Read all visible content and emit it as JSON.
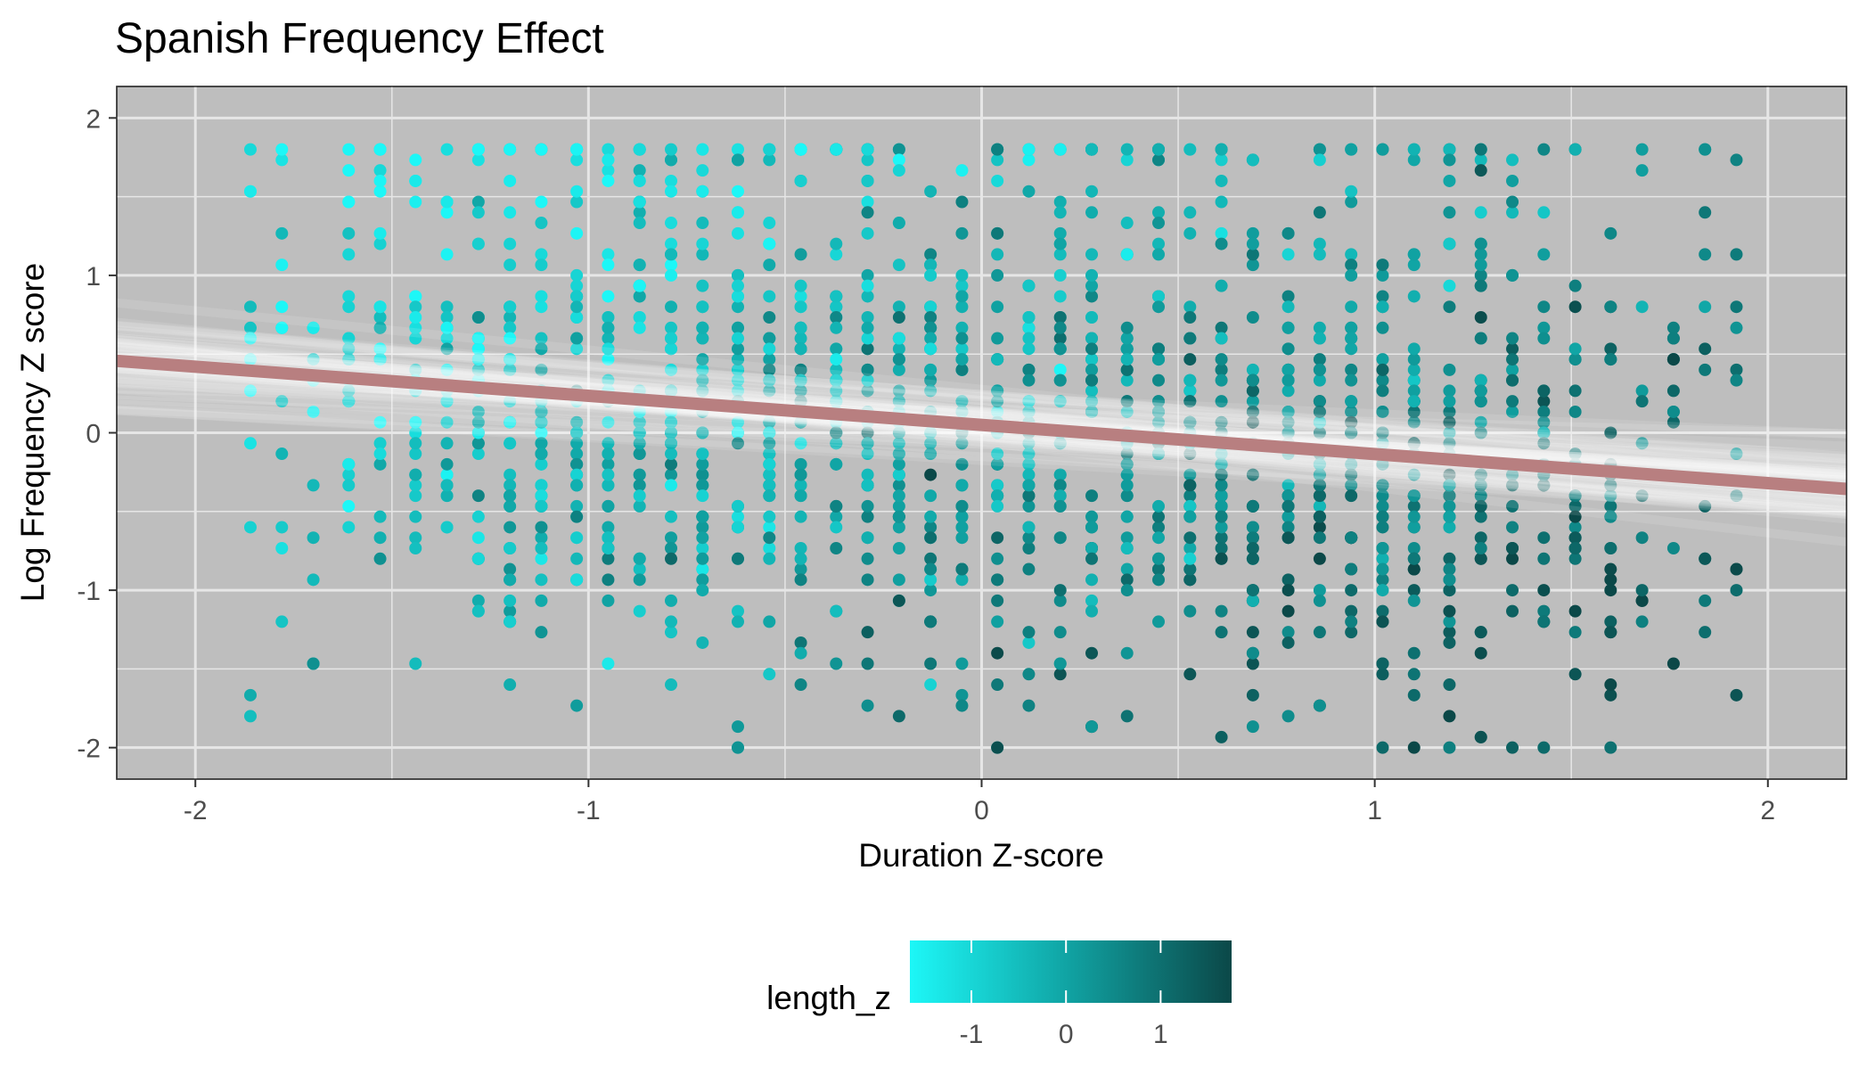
{
  "chart_data": {
    "type": "scatter",
    "title": "Spanish Frequency Effect",
    "xlabel": "Duration Z-score",
    "ylabel": "Log Frequency Z score",
    "xlim": [
      -2.2,
      2.2
    ],
    "ylim": [
      -2.2,
      2.2
    ],
    "x_ticks": [
      -2,
      -1,
      0,
      1,
      2
    ],
    "x_tick_labels": [
      "-2",
      "-1",
      "0",
      "1",
      "2"
    ],
    "y_ticks": [
      -2,
      -1,
      0,
      1,
      2
    ],
    "y_tick_labels": [
      "-2",
      "-1",
      "0",
      "1",
      "2"
    ],
    "grid": true,
    "panel_background": "#bebebe",
    "grid_color": "#e6e6e6",
    "regression_line": {
      "intercept": 0.05,
      "slope": -0.185,
      "color": "#b87f80"
    },
    "uncertainty_band_color": "#ffffff",
    "legend": {
      "title": "length_z",
      "position": "bottom",
      "type": "colorbar",
      "range": [
        -1.65,
        1.75
      ],
      "ticks": [
        -1,
        0,
        1
      ],
      "tick_labels": [
        "-1",
        "0",
        "1"
      ],
      "color_low": "#1df7f7",
      "color_mid": "#11aaaa",
      "color_high": "#0b4848"
    },
    "points": {
      "x_levels": [
        -1.86,
        -1.78,
        -1.7,
        -1.61,
        -1.53,
        -1.44,
        -1.36,
        -1.28,
        -1.2,
        -1.12,
        -1.03,
        -0.95,
        -0.87,
        -0.79,
        -0.71,
        -0.62,
        -0.54,
        -0.46,
        -0.37,
        -0.29,
        -0.21,
        -0.13,
        -0.05,
        0.04,
        0.12,
        0.2,
        0.28,
        0.37,
        0.45,
        0.53,
        0.61,
        0.69,
        0.78,
        0.86,
        0.94,
        1.02,
        1.1,
        1.19,
        1.27,
        1.35,
        1.43,
        1.51,
        1.6,
        1.68,
        1.76,
        1.84,
        1.92
      ],
      "y_range": [
        -2.0,
        1.8
      ],
      "count": 1500
    }
  }
}
